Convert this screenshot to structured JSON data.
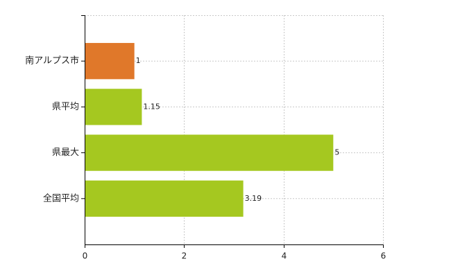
{
  "chart_data": {
    "type": "bar",
    "orientation": "horizontal",
    "categories": [
      "南アルプス市",
      "県平均",
      "県最大",
      "全国平均"
    ],
    "values": [
      1,
      1.15,
      5,
      3.19
    ],
    "colors": [
      "#e0782a",
      "#a5c820",
      "#a5c820",
      "#a5c820"
    ],
    "xlim": [
      0,
      6
    ],
    "xticks": [
      0,
      2,
      4,
      6
    ],
    "grid": true
  }
}
